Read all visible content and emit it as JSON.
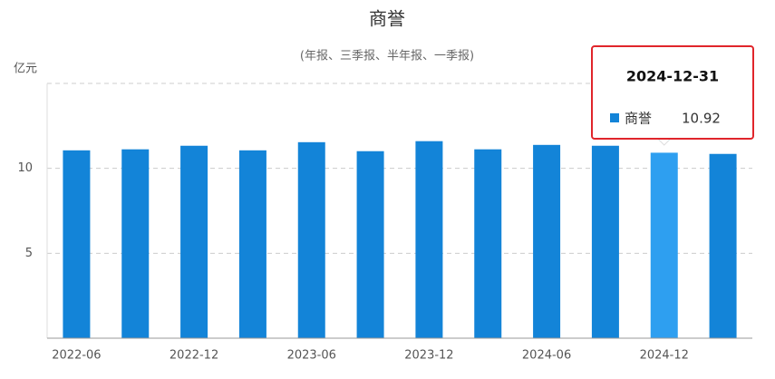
{
  "chart_data": {
    "type": "bar",
    "title": "商誉",
    "subtitle": "(年报、三季报、半年报、一季报)",
    "y_unit": "亿元",
    "categories": [
      "2022-06",
      null,
      "2022-12",
      null,
      "2023-06",
      null,
      "2023-12",
      null,
      "2024-06",
      null,
      "2024-12",
      null
    ],
    "series": [
      {
        "name": "商誉",
        "color": "#1384d8",
        "highlight_color": "#2e9ff0",
        "values": [
          11.06,
          11.12,
          11.33,
          11.06,
          11.54,
          11.01,
          11.6,
          11.12,
          11.38,
          11.33,
          10.92,
          10.85
        ]
      }
    ],
    "ylim": [
      0,
      15
    ],
    "yticks": [
      5,
      10
    ],
    "grid": true,
    "tooltip": {
      "title": "2024-12-31"
    }
  }
}
